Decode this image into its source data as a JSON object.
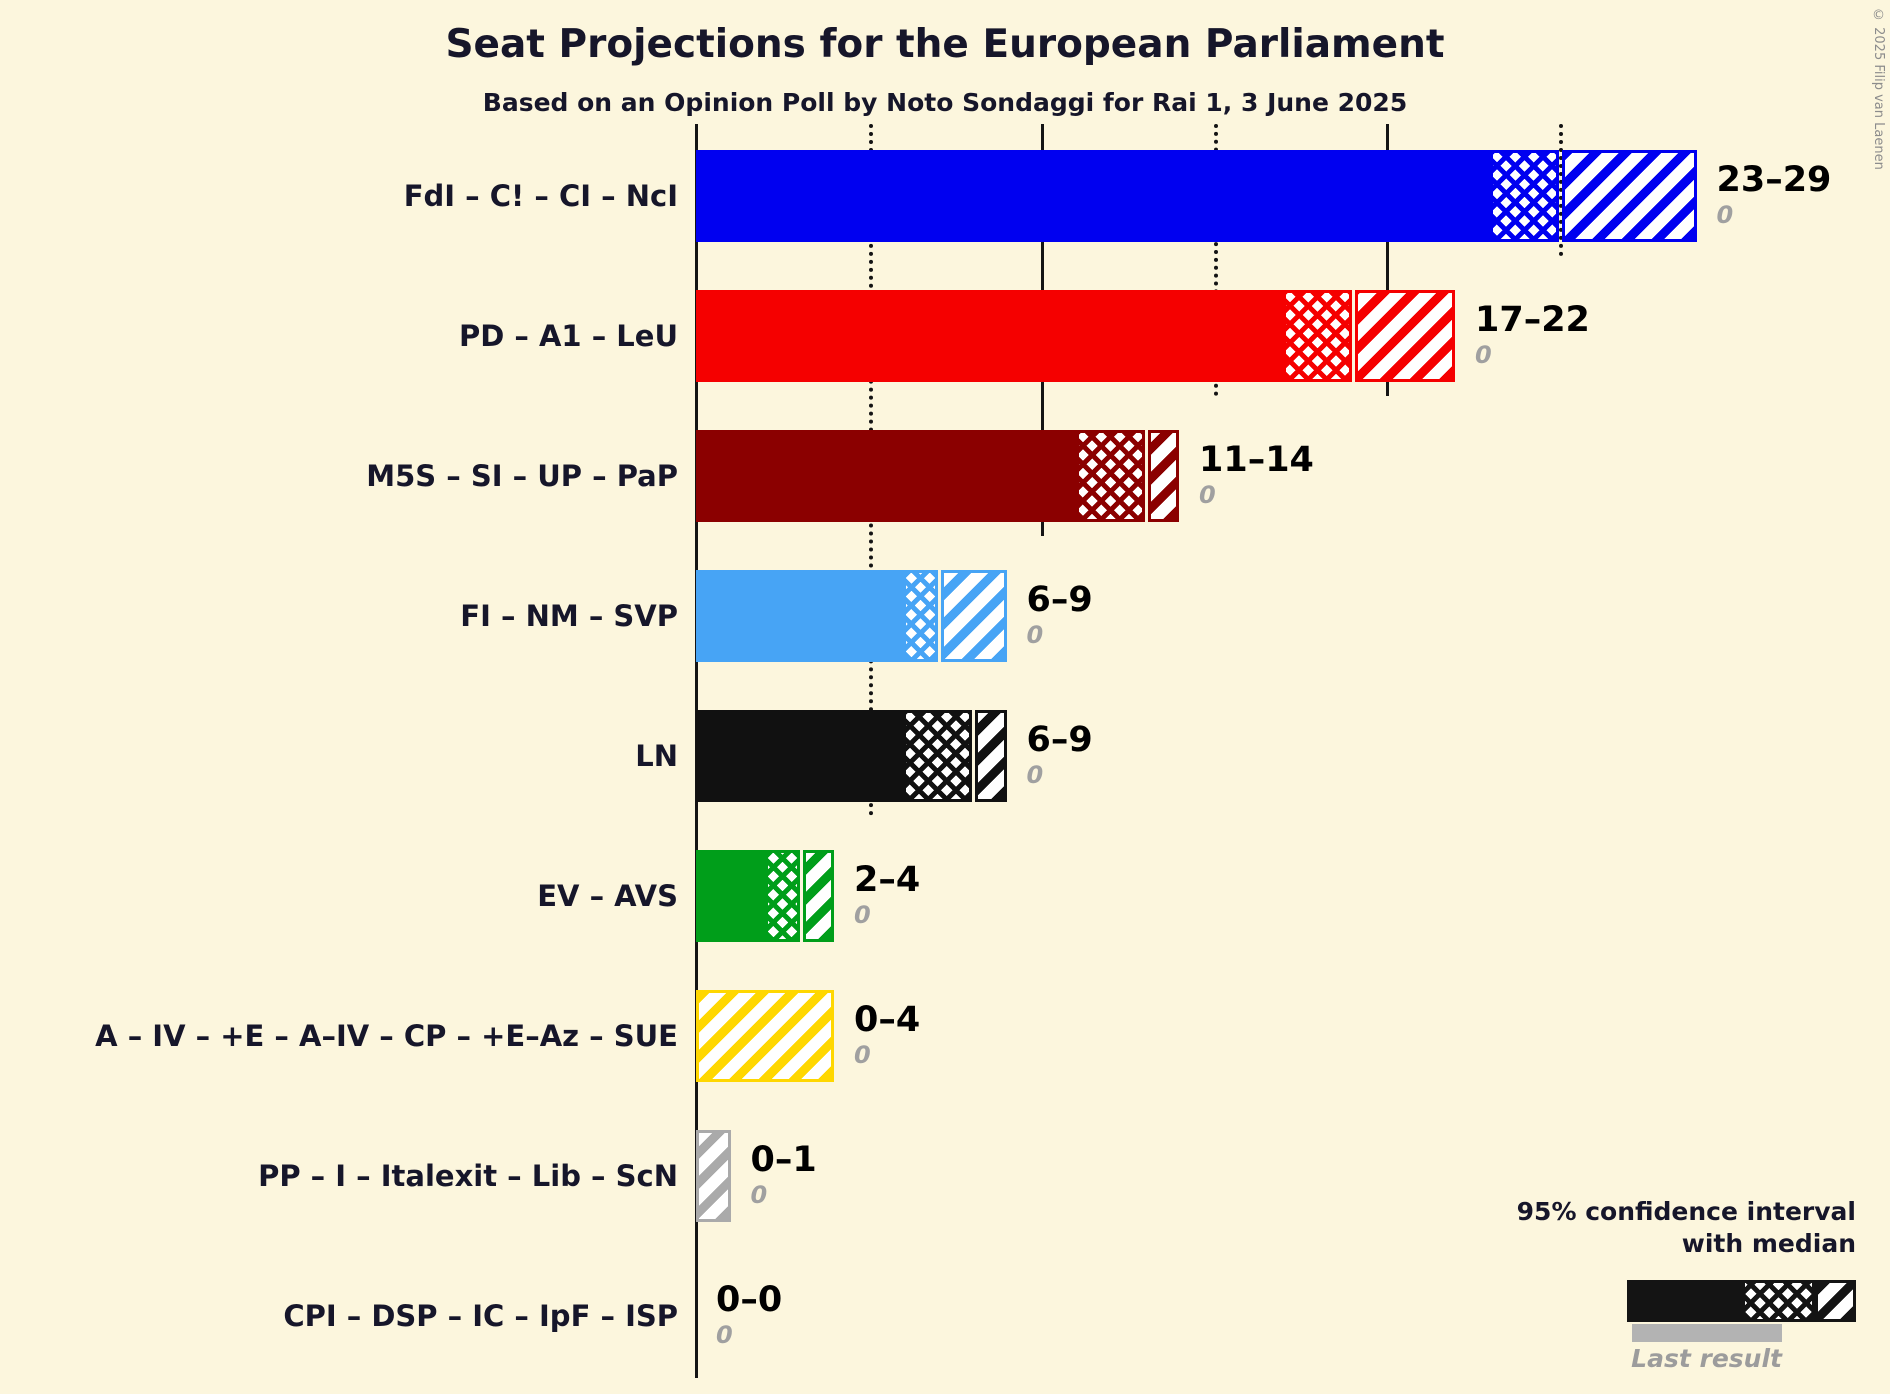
{
  "header": {
    "copyright": "© 2025 Filip van Laenen"
  },
  "legend": {
    "line1": "95% confidence interval",
    "line2": "with median",
    "last_result_label": "Last result"
  },
  "chart_data": {
    "type": "bar",
    "orientation": "horizontal",
    "title": "Seat Projections for the European Parliament",
    "subtitle": "Based on an Opinion Poll by Noto Sondaggi for Rai 1, 3 June 2025",
    "unit": "seats",
    "xlabel": "",
    "ylabel": "",
    "x_axis": {
      "min": 0,
      "max": 29,
      "gridline_step": 5,
      "solid_gridlines": [
        10,
        20
      ],
      "dotted_gridlines": [
        5,
        15,
        25
      ],
      "tick_labels_visible": false
    },
    "bar_style_note": "solid = up to 95% CI lower bound, crosshatch = lower bound to median, diagonal hatch = median to upper bound",
    "legend_position": "bottom-right",
    "series": [
      {
        "party": "FdI – C! – CI – NcI",
        "color": "#0000F0",
        "ci_low": 23,
        "median": 25,
        "ci_high": 29,
        "range_label": "23–29",
        "last_result": 0
      },
      {
        "party": "PD – A1 – LeU",
        "color": "#F50000",
        "ci_low": 17,
        "median": 19,
        "ci_high": 22,
        "range_label": "17–22",
        "last_result": 0
      },
      {
        "party": "M5S – SI – UP – PaP",
        "color": "#8B0000",
        "ci_low": 11,
        "median": 13,
        "ci_high": 14,
        "range_label": "11–14",
        "last_result": 0
      },
      {
        "party": "FI – NM – SVP",
        "color": "#47A4F5",
        "ci_low": 6,
        "median": 7,
        "ci_high": 9,
        "range_label": "6–9",
        "last_result": 0
      },
      {
        "party": "LN",
        "color": "#111111",
        "ci_low": 6,
        "median": 8,
        "ci_high": 9,
        "range_label": "6–9",
        "last_result": 0
      },
      {
        "party": "EV – AVS",
        "color": "#009E1A",
        "ci_low": 2,
        "median": 3,
        "ci_high": 4,
        "range_label": "2–4",
        "last_result": 0
      },
      {
        "party": "A – IV – +E – A–IV – CP – +E–Az – SUE",
        "color": "#FFD700",
        "ci_low": 0,
        "median": 0,
        "ci_high": 4,
        "range_label": "0–4",
        "last_result": 0
      },
      {
        "party": "PP – I – Italexit – Lib – ScN",
        "color": "#AAAAAA",
        "ci_low": 0,
        "median": 0,
        "ci_high": 1,
        "range_label": "0–1",
        "last_result": 0
      },
      {
        "party": "CPI – DSP – IC – IpF – ISP",
        "color": "#777777",
        "ci_low": 0,
        "median": 0,
        "ci_high": 0,
        "range_label": "0–0",
        "last_result": 0
      }
    ]
  }
}
